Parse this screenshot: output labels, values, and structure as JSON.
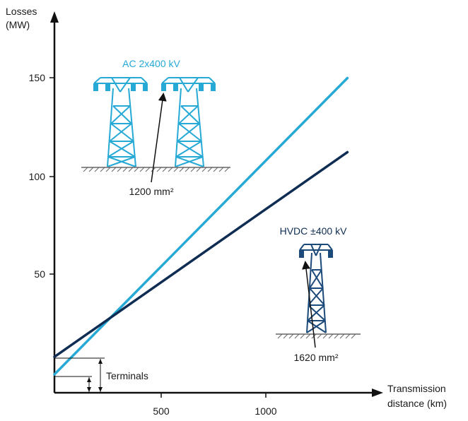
{
  "chart_data": {
    "type": "line",
    "ylabel": [
      "Losses",
      "(MW)"
    ],
    "xlabel": [
      "Transmission",
      "distance (km)"
    ],
    "xlim": [
      0,
      1500
    ],
    "ylim": [
      0,
      170
    ],
    "x_ticks": [
      500,
      1000
    ],
    "y_ticks": [
      50,
      100,
      150
    ],
    "grid": false,
    "series": [
      {
        "name": "AC 2x400 kV",
        "color": "#27a9d6",
        "x": [
          0,
          1400
        ],
        "y": [
          0,
          152
        ],
        "conductor_label": "1200 mm²"
      },
      {
        "name": "HVDC ±400 kV",
        "color": "#0f2d52",
        "x": [
          0,
          1400
        ],
        "y": [
          9,
          114
        ],
        "conductor_label": "1620 mm²"
      }
    ],
    "annotations": {
      "terminals": "Terminals"
    }
  }
}
